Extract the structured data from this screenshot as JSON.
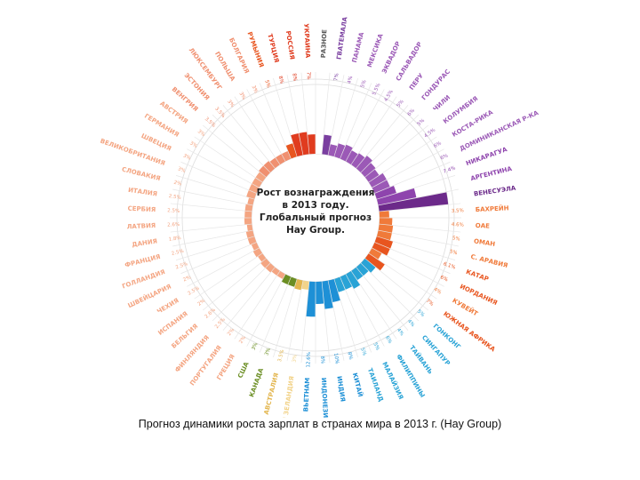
{
  "caption": "Прогноз динамики роста зарплат в странах мира в 2013 г. (Hay Group)",
  "chart_data": {
    "type": "radial-bar",
    "title_lines": [
      "Рост вознаграждения",
      "в 2013 году.",
      "Глобальный прогноз",
      "Hay Group."
    ],
    "categories": [
      {
        "label": "РАЗНОЕ",
        "value": "",
        "v": 2.0,
        "color": "#ffffff"
      },
      {
        "label": "ГВАТЕМАЛА",
        "value": "7%",
        "v": 7.0,
        "color": "#7a3fa0"
      },
      {
        "label": "ПАНАМА",
        "value": "4%",
        "v": 4.0,
        "color": "#9b59b6"
      },
      {
        "label": "МЕКСИКА",
        "value": "5%",
        "v": 5.0,
        "color": "#9b59b6"
      },
      {
        "label": "ЭКВАДОР",
        "value": "5.5%",
        "v": 5.5,
        "color": "#9b59b6"
      },
      {
        "label": "САЛЬВАДОР",
        "value": "4.5%",
        "v": 4.5,
        "color": "#9b59b6"
      },
      {
        "label": "ПЕРУ",
        "value": "5%",
        "v": 5.0,
        "color": "#9b59b6"
      },
      {
        "label": "ГОНДУРАС",
        "value": "6%",
        "v": 6.0,
        "color": "#9b59b6"
      },
      {
        "label": "ЧИЛИ",
        "value": "5%",
        "v": 5.0,
        "color": "#9b59b6"
      },
      {
        "label": "КОЛУМБИЯ",
        "value": "4.5%",
        "v": 4.5,
        "color": "#9b59b6"
      },
      {
        "label": "КОСТА-РИКА",
        "value": "6%",
        "v": 6.0,
        "color": "#9b59b6"
      },
      {
        "label": "ДОМИНИКАНСКАЯ Р-КА",
        "value": "6%",
        "v": 6.0,
        "color": "#9b59b6"
      },
      {
        "label": "НИКАРАГУА",
        "value": "7.4%",
        "v": 7.4,
        "color": "#8e44ad"
      },
      {
        "label": "АРГЕНТИНА",
        "value": "",
        "v": 14.0,
        "color": "#8e44ad"
      },
      {
        "label": "ВЕНЕСУЭЛА",
        "value": "",
        "v": 25.0,
        "color": "#6c2a8a"
      },
      {
        "label": "БАХРЕЙН",
        "value": "3.5%",
        "v": 3.5,
        "color": "#f07a3a"
      },
      {
        "label": "ОАЕ",
        "value": "4.6%",
        "v": 4.6,
        "color": "#f07a3a"
      },
      {
        "label": "ОМАН",
        "value": "5%",
        "v": 5.0,
        "color": "#f07a3a"
      },
      {
        "label": "С. АРАВИЯ",
        "value": "5%",
        "v": 5.0,
        "color": "#f07a3a"
      },
      {
        "label": "КАТАР",
        "value": "6.1%",
        "v": 6.1,
        "color": "#e8551f"
      },
      {
        "label": "ИОРДАНИЯ",
        "value": "6%",
        "v": 6.0,
        "color": "#e8551f"
      },
      {
        "label": "КУВЕЙТ",
        "value": "4%",
        "v": 4.0,
        "color": "#f07a3a"
      },
      {
        "label": "ЮЖНАЯ АФРИКА",
        "value": "7%",
        "v": 7.0,
        "color": "#e8551f"
      },
      {
        "label": "ГОНКОНГ",
        "value": "5%",
        "v": 5.0,
        "color": "#29a3d6"
      },
      {
        "label": "СИНГАПУР",
        "value": "4%",
        "v": 4.0,
        "color": "#29a3d6"
      },
      {
        "label": "ТАЙВАНЬ",
        "value": "4%",
        "v": 4.0,
        "color": "#29a3d6"
      },
      {
        "label": "ФИЛИППИНЫ",
        "value": "6%",
        "v": 6.0,
        "color": "#29a3d6"
      },
      {
        "label": "МАЛАЙЗИЯ",
        "value": "5%",
        "v": 5.0,
        "color": "#29a3d6"
      },
      {
        "label": "ТАИЛАНД",
        "value": "5%",
        "v": 5.0,
        "color": "#29a3d6"
      },
      {
        "label": "КИТАЙ",
        "value": "8%",
        "v": 8.0,
        "color": "#1e90d6"
      },
      {
        "label": "ИНДИЯ",
        "value": "10%",
        "v": 10.0,
        "color": "#1e90d6"
      },
      {
        "label": "ИНДОНЕЗИЯ",
        "value": "8%",
        "v": 8.0,
        "color": "#1e90d6"
      },
      {
        "label": "ВЬЕТНАМ",
        "value": "12.6%",
        "v": 12.6,
        "color": "#1e90d6"
      },
      {
        "label": "НОВАЯ ЗЕЛАНДИЯ",
        "value": "3%",
        "v": 3.0,
        "color": "#f2d38a"
      },
      {
        "label": "АВСТРАЛИЯ",
        "value": "3.5%",
        "v": 3.5,
        "color": "#e3b64f"
      },
      {
        "label": "КАНАДА",
        "value": "3%",
        "v": 3.0,
        "color": "#6b8e23"
      },
      {
        "label": "США",
        "value": "3%",
        "v": 3.0,
        "color": "#6b8e23"
      },
      {
        "label": "ГРЕЦИЯ",
        "value": "2%",
        "v": 2.0,
        "color": "#f4a582"
      },
      {
        "label": "ПОРТУГАЛИЯ",
        "value": "2%",
        "v": 2.0,
        "color": "#f4a582"
      },
      {
        "label": "ФИНЛЯНДИЯ",
        "value": "2.5%",
        "v": 2.5,
        "color": "#f4a582"
      },
      {
        "label": "БЕЛЬГИЯ",
        "value": "2.6%",
        "v": 2.6,
        "color": "#f4a582"
      },
      {
        "label": "ИСПАНИЯ",
        "value": "2%",
        "v": 2.0,
        "color": "#f4a582"
      },
      {
        "label": "ЧЕХИЯ",
        "value": "2.5%",
        "v": 2.5,
        "color": "#f4a582"
      },
      {
        "label": "ШВЕЙЦАРИЯ",
        "value": "2%",
        "v": 2.0,
        "color": "#f4a582"
      },
      {
        "label": "ГОЛЛАНДИЯ",
        "value": "2.5%",
        "v": 2.5,
        "color": "#f4a582"
      },
      {
        "label": "ФРАНЦИЯ",
        "value": "2.5%",
        "v": 2.5,
        "color": "#f4a582"
      },
      {
        "label": "ДАНИЯ",
        "value": "1.8%",
        "v": 1.8,
        "color": "#f4a582"
      },
      {
        "label": "ЛАТВИЯ",
        "value": "2.6%",
        "v": 2.6,
        "color": "#f4a582"
      },
      {
        "label": "СЕРБИЯ",
        "value": "2.5%",
        "v": 2.5,
        "color": "#f4a582"
      },
      {
        "label": "ИТАЛИЯ",
        "value": "2.5%",
        "v": 2.5,
        "color": "#f4a582"
      },
      {
        "label": "СЛОВАКИЯ",
        "value": "2%",
        "v": 2.0,
        "color": "#f4a582"
      },
      {
        "label": "ВЕЛИКОБРИТАНИЯ",
        "value": "3%",
        "v": 3.0,
        "color": "#f4a582"
      },
      {
        "label": "ШВЕЦИЯ",
        "value": "3%",
        "v": 3.0,
        "color": "#f4a582"
      },
      {
        "label": "ГЕРМАНИЯ",
        "value": "3%",
        "v": 3.0,
        "color": "#f4a582"
      },
      {
        "label": "АВСТРИЯ",
        "value": "3%",
        "v": 3.0,
        "color": "#f4a582"
      },
      {
        "label": "ВЕНГРИЯ",
        "value": "3.5%",
        "v": 3.5,
        "color": "#f09070"
      },
      {
        "label": "ЭСТОНИЯ",
        "value": "3.5%",
        "v": 3.5,
        "color": "#f09070"
      },
      {
        "label": "ЛЮКСЕМБУРГ",
        "value": "3%",
        "v": 3.0,
        "color": "#f09070"
      },
      {
        "label": "ПОЛЬША",
        "value": "3%",
        "v": 3.0,
        "color": "#f09070"
      },
      {
        "label": "БОЛГАРИЯ",
        "value": "3%",
        "v": 3.0,
        "color": "#f09070"
      },
      {
        "label": "РУМЫНИЯ",
        "value": "5%",
        "v": 5.0,
        "color": "#e8551f"
      },
      {
        "label": "ТУРЦИЯ",
        "value": "8%",
        "v": 8.0,
        "color": "#e03c1f"
      },
      {
        "label": "РОССИЯ",
        "value": "8%",
        "v": 8.0,
        "color": "#e03c1f"
      },
      {
        "label": "УКРАИНА",
        "value": "7%",
        "v": 7.0,
        "color": "#e03c1f"
      }
    ]
  }
}
